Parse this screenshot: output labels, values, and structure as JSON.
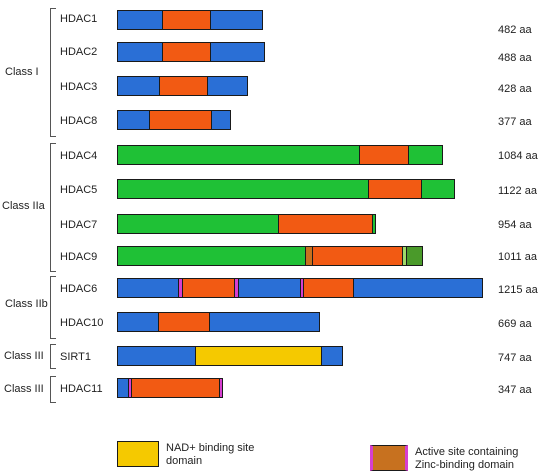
{
  "colors": {
    "blue": "#2a6fd6",
    "orange": "#f25a13",
    "green": "#1fc136",
    "yellow": "#f5c900",
    "active_site": "#c7711f",
    "zinc_border": "#d63fd0",
    "light_green": "#9fd96a"
  },
  "groups": [
    {
      "name": "Class I"
    },
    {
      "name": "Class IIa"
    },
    {
      "name": "Class IIb"
    },
    {
      "name": "Class III"
    },
    {
      "name": "Class III"
    }
  ],
  "proteins": [
    {
      "name": "HDAC1",
      "length": "482 aa"
    },
    {
      "name": "HDAC2",
      "length": "488 aa"
    },
    {
      "name": "HDAC3",
      "length": "428 aa"
    },
    {
      "name": "HDAC8",
      "length": "377 aa"
    },
    {
      "name": "HDAC4",
      "length": "1084 aa"
    },
    {
      "name": "HDAC5",
      "length": "1122 aa"
    },
    {
      "name": "HDAC7",
      "length": "954 aa"
    },
    {
      "name": "HDAC9",
      "length": "1011 aa"
    },
    {
      "name": "HDAC6",
      "length": "1215 aa"
    },
    {
      "name": "HDAC10",
      "length": "669 aa"
    },
    {
      "name": "SIRT1",
      "length": "747 aa"
    },
    {
      "name": "HDAC11",
      "length": "347 aa"
    }
  ],
  "legend": {
    "nad_label": "NAD+ binding site domain",
    "active_label": "Active site containing Zinc-binding domain"
  }
}
